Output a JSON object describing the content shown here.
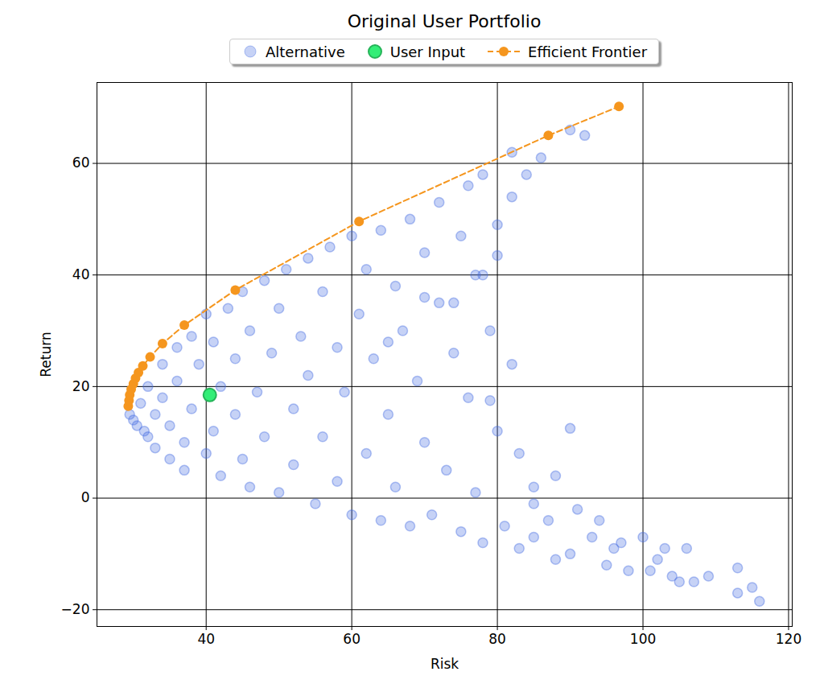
{
  "chart_data": {
    "type": "scatter",
    "title": "Original User Portfolio",
    "x_label": "Risk",
    "y_label": "Return",
    "xlim": [
      25,
      120.5
    ],
    "xticks": [
      40,
      60,
      80,
      100,
      120
    ],
    "ylim": [
      -23,
      74.5
    ],
    "yticks": [
      -20,
      0,
      20,
      40,
      60
    ],
    "grid": true,
    "legend": "top",
    "series": [
      {
        "name": "Alternative",
        "type": "scatter",
        "marker": "circle",
        "color": "#4169e1",
        "x": [
          29.5,
          30,
          30.5,
          31,
          31.5,
          32,
          32,
          33,
          33,
          34,
          34,
          35,
          35,
          36,
          36,
          37,
          37,
          38,
          38,
          39,
          40,
          40,
          41,
          41,
          42,
          42,
          43,
          44,
          44,
          45,
          45,
          46,
          46,
          47,
          48,
          48,
          49,
          50,
          50,
          51,
          52,
          52,
          53,
          54,
          54,
          55,
          56,
          56,
          57,
          58,
          58,
          59,
          60,
          60,
          61,
          62,
          62,
          63,
          64,
          64,
          65,
          66,
          66,
          67,
          68,
          68,
          69,
          70,
          70,
          71,
          72,
          72,
          73,
          74,
          75,
          75,
          76,
          76,
          77,
          77,
          78,
          78,
          79,
          80,
          80,
          81,
          82,
          82,
          83,
          83,
          84,
          85,
          85,
          86,
          87,
          88,
          88,
          90,
          90,
          90,
          91,
          92,
          93,
          94,
          95,
          96,
          97,
          98,
          100,
          101,
          102,
          103,
          104,
          105,
          106,
          107,
          109,
          113,
          113,
          115,
          116,
          82,
          80,
          78,
          74,
          79,
          70,
          65,
          85
        ],
        "values": [
          15,
          14,
          13,
          17,
          12,
          20,
          11,
          15,
          9,
          24,
          18,
          7,
          13,
          27,
          21,
          10,
          5,
          16,
          29,
          24,
          33,
          8,
          12,
          28,
          20,
          4,
          34,
          15,
          25,
          7,
          37,
          30,
          2,
          19,
          39,
          11,
          26,
          1,
          34,
          41,
          16,
          6,
          29,
          43,
          22,
          -1,
          37,
          11,
          45,
          3,
          27,
          19,
          47,
          -3,
          33,
          8,
          41,
          25,
          48,
          -4,
          15,
          38,
          2,
          30,
          50,
          -5,
          21,
          44,
          10,
          -3,
          53,
          35,
          5,
          26,
          47,
          -6,
          56,
          18,
          40,
          1,
          58,
          -8,
          30,
          49,
          12,
          -5,
          62,
          24,
          8,
          -9,
          58,
          2,
          -7,
          61,
          -4,
          -11,
          4,
          66,
          12.5,
          -10,
          -2,
          65,
          -7,
          -4,
          -12,
          -9,
          -8,
          -13,
          -7,
          -13,
          -11,
          -9,
          -14,
          -15,
          -9,
          -15,
          -14,
          -12.5,
          -17,
          -16,
          -18.5,
          54,
          43.5,
          40,
          35,
          17.5,
          36,
          28,
          -1
        ]
      },
      {
        "name": "User Input",
        "type": "scatter",
        "marker": "circle",
        "color": "#33ee77",
        "x": [
          40.5
        ],
        "values": [
          18.5
        ]
      },
      {
        "name": "Efficient Frontier",
        "type": "line",
        "marker": "circle",
        "line_style": "dashed",
        "color": "#f5961e",
        "x": [
          29.3,
          29.4,
          29.5,
          29.7,
          30,
          30.3,
          30.7,
          31.3,
          32.3,
          34,
          37,
          44,
          61,
          87,
          96.7
        ],
        "values": [
          16.5,
          17.5,
          18.5,
          19.5,
          20.5,
          21.5,
          22.5,
          23.7,
          25.3,
          27.7,
          31,
          37.3,
          49.6,
          65,
          70.2
        ]
      }
    ]
  }
}
